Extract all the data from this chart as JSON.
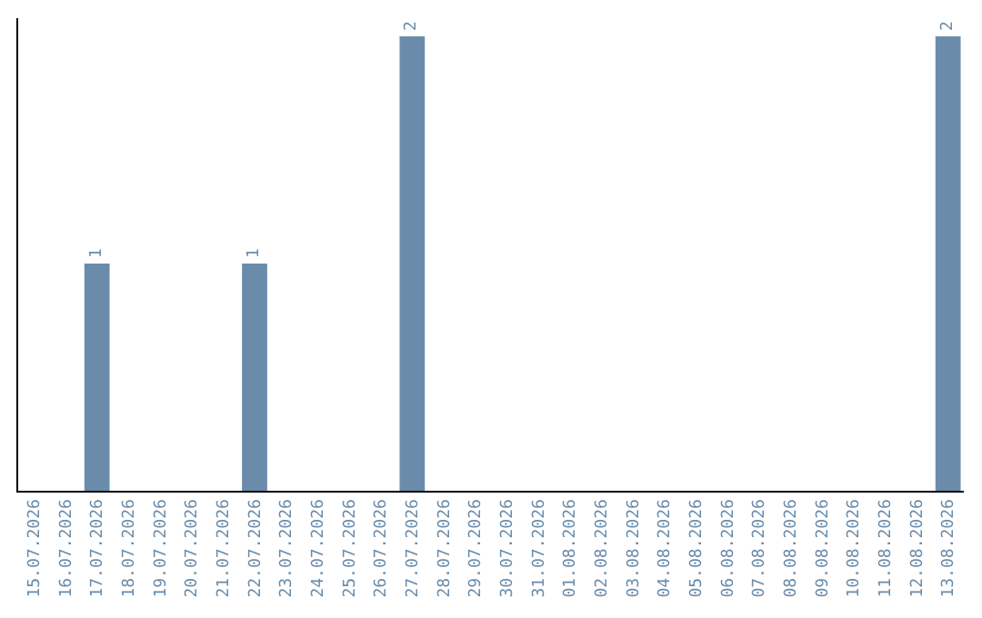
{
  "chart_data": {
    "type": "bar",
    "categories": [
      "15.07.2026",
      "16.07.2026",
      "17.07.2026",
      "18.07.2026",
      "19.07.2026",
      "20.07.2026",
      "21.07.2026",
      "22.07.2026",
      "23.07.2026",
      "24.07.2026",
      "25.07.2026",
      "26.07.2026",
      "27.07.2026",
      "28.07.2026",
      "29.07.2026",
      "30.07.2026",
      "31.07.2026",
      "01.08.2026",
      "02.08.2026",
      "03.08.2026",
      "04.08.2026",
      "05.08.2026",
      "06.08.2026",
      "07.08.2026",
      "08.08.2026",
      "09.08.2026",
      "10.08.2026",
      "11.08.2026",
      "12.08.2026",
      "13.08.2026"
    ],
    "values": [
      0,
      0,
      1,
      0,
      0,
      0,
      0,
      1,
      0,
      0,
      0,
      0,
      2,
      0,
      0,
      0,
      0,
      0,
      0,
      0,
      0,
      0,
      0,
      0,
      0,
      0,
      0,
      0,
      0,
      2
    ],
    "value_labels": [
      null,
      null,
      "1",
      null,
      null,
      null,
      null,
      "1",
      null,
      null,
      null,
      null,
      "2",
      null,
      null,
      null,
      null,
      null,
      null,
      null,
      null,
      null,
      null,
      null,
      null,
      null,
      null,
      null,
      null,
      "2"
    ],
    "color": "#6a8caa",
    "ylim": [
      0,
      2.08
    ]
  }
}
